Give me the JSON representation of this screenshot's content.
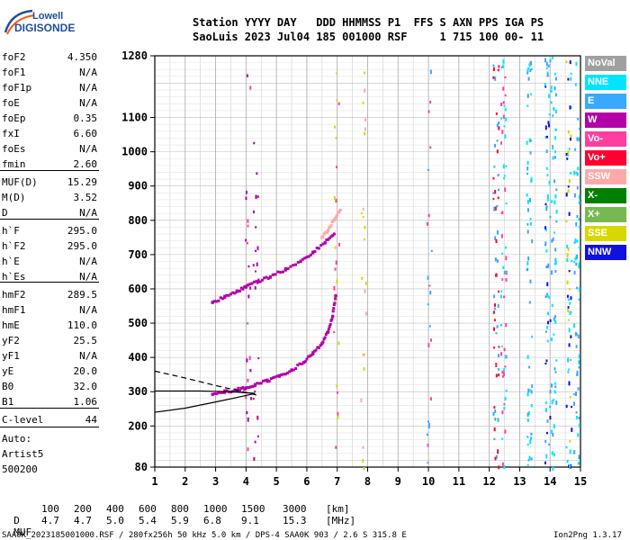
{
  "logo": {
    "line1": "Lowell",
    "line2": "DIGISONDE"
  },
  "header": {
    "line1": "Station YYYY DAY   DDD HHMMSS P1  FFS S AXN PPS IGA PS",
    "line2": "SaoLuis 2023 Jul04 185 001000 RSF     1 715 100 00- 11"
  },
  "params": [
    {
      "k": "foF2",
      "v": "4.350"
    },
    {
      "k": "foF1",
      "v": "N/A"
    },
    {
      "k": "foF1p",
      "v": "N/A"
    },
    {
      "k": "foE",
      "v": "N/A"
    },
    {
      "k": "foEp",
      "v": "0.35"
    },
    {
      "k": "fxI",
      "v": "6.60"
    },
    {
      "k": "foEs",
      "v": "N/A"
    },
    {
      "k": "fmin",
      "v": "2.60"
    },
    {
      "k": "MUF(D)",
      "v": "15.29"
    },
    {
      "k": "M(D)",
      "v": "3.52"
    },
    {
      "k": "D",
      "v": "N/A"
    },
    {
      "k": "h`F",
      "v": "295.0"
    },
    {
      "k": "h`F2",
      "v": "295.0"
    },
    {
      "k": "h`E",
      "v": "N/A"
    },
    {
      "k": "h`Es",
      "v": "N/A"
    },
    {
      "k": "hmF2",
      "v": "289.5"
    },
    {
      "k": "hmF1",
      "v": "N/A"
    },
    {
      "k": "hmE",
      "v": "110.0"
    },
    {
      "k": "yF2",
      "v": "25.5"
    },
    {
      "k": "yF1",
      "v": "N/A"
    },
    {
      "k": "yE",
      "v": "20.0"
    },
    {
      "k": "B0",
      "v": "32.0"
    },
    {
      "k": "B1",
      "v": "1.06"
    },
    {
      "k": "C-level",
      "v": "44"
    }
  ],
  "auto": {
    "l1": "Auto:",
    "l2": "Artist5",
    "l3": "500200"
  },
  "legend": [
    {
      "label": "NoVal",
      "color": "#a0a0a0"
    },
    {
      "label": "NNE",
      "color": "#00e5ff"
    },
    {
      "label": "E",
      "color": "#3aa8ff"
    },
    {
      "label": "W",
      "color": "#b400a8"
    },
    {
      "label": "Vo-",
      "color": "#ff3fa0"
    },
    {
      "label": "Vo+",
      "color": "#ff0030"
    },
    {
      "label": "SSW",
      "color": "#ffa8a8"
    },
    {
      "label": "X-",
      "color": "#008000"
    },
    {
      "label": "X+",
      "color": "#78b850"
    },
    {
      "label": "SSE",
      "color": "#d8d800"
    },
    {
      "label": "NNW",
      "color": "#1010e0"
    }
  ],
  "muf_table": {
    "d_label": "D",
    "d_values": [
      "100",
      "200",
      "400",
      "600",
      "800",
      "1000",
      "1500",
      "3000"
    ],
    "d_unit": "[km]",
    "muf_label": "MUF",
    "muf_values": [
      "4.7",
      "4.7",
      "5.0",
      "5.4",
      "5.9",
      "6.8",
      "9.1",
      "15.3"
    ],
    "muf_unit": "[MHz]"
  },
  "footer": {
    "left": "SAA0K_2023185001000.RSF / 280fx256h 50 kHz 5.0 km / DPS-4 SAA0K 903 / 2.6 S 315.8 E",
    "right": "Ion2Png 1.3.17"
  },
  "chart_data": {
    "type": "scatter",
    "xlim": [
      1,
      15
    ],
    "ylim": [
      80,
      1280
    ],
    "x_ticks": [
      1,
      2,
      3,
      4,
      5,
      6,
      7,
      8,
      9,
      10,
      11,
      12,
      13,
      14,
      15
    ],
    "y_ticks": [
      80,
      200,
      300,
      400,
      500,
      600,
      700,
      800,
      900,
      1000,
      1100,
      1280
    ],
    "grid": true,
    "series": [
      {
        "name": "W",
        "color": "#b400a8",
        "trace": "o-trace",
        "x": [
          2.9,
          3.3,
          3.7,
          4.0,
          4.3,
          4.7,
          5.1,
          5.5,
          5.9,
          6.2,
          6.5,
          6.7,
          6.85,
          6.95
        ],
        "y": [
          292,
          298,
          304,
          310,
          318,
          330,
          345,
          362,
          385,
          410,
          440,
          475,
          520,
          580
        ]
      },
      {
        "name": "W",
        "color": "#b400a8",
        "trace": "second-hop",
        "x": [
          2.9,
          3.3,
          3.7,
          4.0,
          4.4,
          4.8,
          5.3,
          5.8,
          6.2,
          6.6,
          6.9
        ],
        "y": [
          560,
          575,
          592,
          605,
          620,
          635,
          655,
          680,
          705,
          735,
          760
        ]
      },
      {
        "name": "SSW",
        "color": "#ffa8a8",
        "trace": "x-trace",
        "x": [
          6.5,
          6.7,
          6.9,
          7.1
        ],
        "y": [
          750,
          770,
          800,
          830
        ]
      }
    ],
    "profile": {
      "solid": {
        "x": [
          1,
          2,
          3,
          3.8,
          4.3,
          3.5,
          2.5,
          1.5,
          1
        ],
        "y": [
          240,
          252,
          270,
          285,
          295,
          300,
          302,
          302,
          302
        ]
      },
      "dashed": {
        "x": [
          1,
          2,
          3,
          3.8,
          4.35
        ],
        "y": [
          360,
          340,
          318,
          302,
          290
        ]
      }
    }
  }
}
